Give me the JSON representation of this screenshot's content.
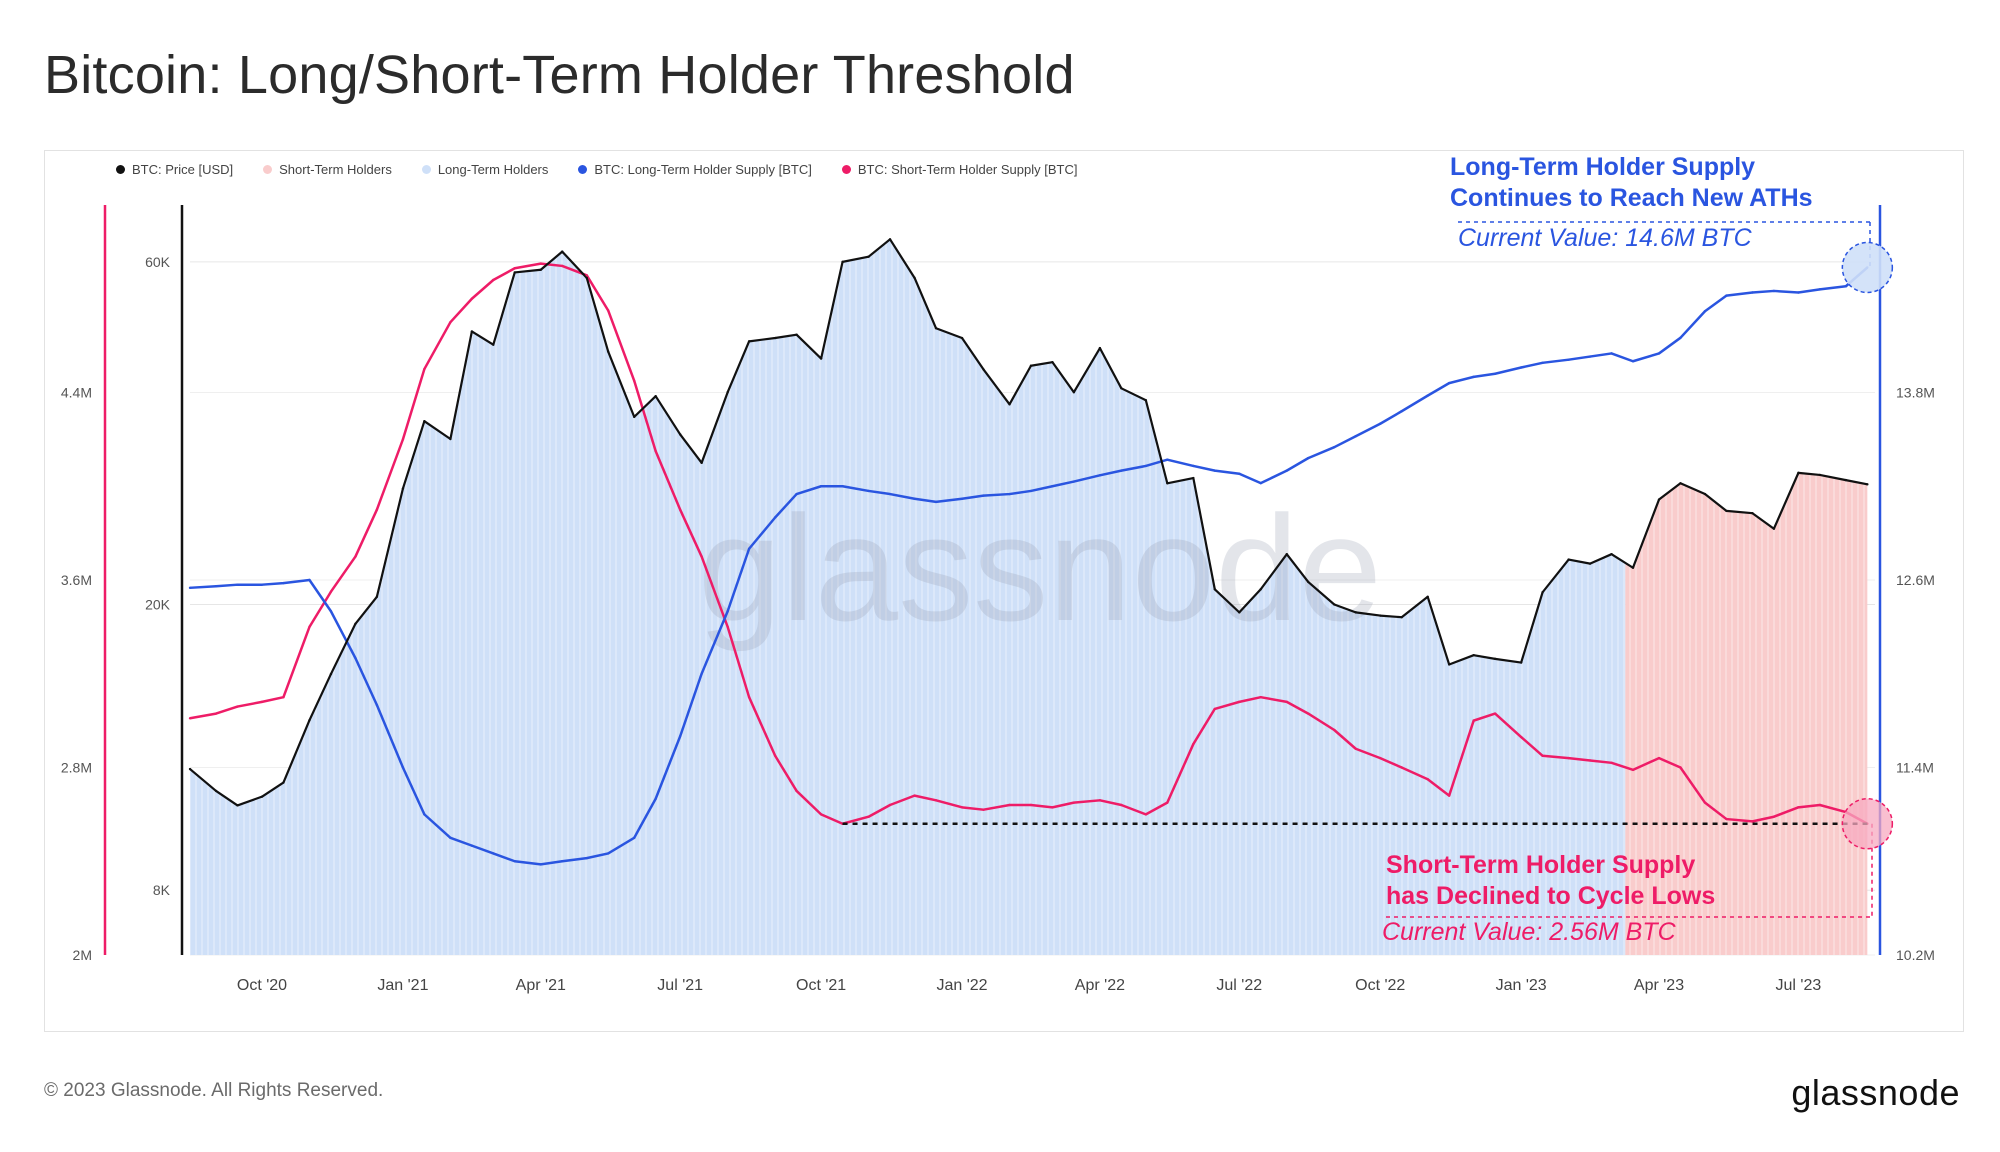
{
  "title": "Bitcoin: Long/Short-Term Holder Threshold",
  "legend": [
    {
      "label": "BTC: Price [USD]",
      "color": "#111111"
    },
    {
      "label": "Short-Term Holders",
      "color": "#f9cccc"
    },
    {
      "label": "Long-Term Holders",
      "color": "#cfe0f8"
    },
    {
      "label": "BTC: Long-Term Holder Supply [BTC]",
      "color": "#2a55e0"
    },
    {
      "label": "BTC: Short-Term Holder Supply [BTC]",
      "color": "#ee1c67"
    }
  ],
  "annotations": {
    "lth_title_line1": "Long-Term Holder Supply",
    "lth_title_line2": "Continues to Reach New ATHs",
    "lth_value": "Current Value: 14.6M BTC",
    "sth_title_line1": "Short-Term Holder Supply",
    "sth_title_line2": "has Declined to Cycle Lows",
    "sth_value": "Current Value: 2.56M BTC"
  },
  "watermark": "glassnode",
  "footer": {
    "copyright": "© 2023 Glassnode. All Rights Reserved.",
    "brand": "glassnode"
  },
  "chart_data": {
    "type": "line",
    "x_ticks": [
      "Oct '20",
      "Jan '21",
      "Apr '21",
      "Jul '21",
      "Oct '21",
      "Jan '22",
      "Apr '22",
      "Jul '22",
      "Oct '22",
      "Jan '23",
      "Apr '23",
      "Jul '23"
    ],
    "x": [
      "2020-08-15",
      "2020-09-01",
      "2020-09-15",
      "2020-10-01",
      "2020-10-15",
      "2020-11-01",
      "2020-11-15",
      "2020-12-01",
      "2020-12-15",
      "2021-01-01",
      "2021-01-15",
      "2021-02-01",
      "2021-02-15",
      "2021-03-01",
      "2021-03-15",
      "2021-04-01",
      "2021-04-15",
      "2021-05-01",
      "2021-05-15",
      "2021-06-01",
      "2021-06-15",
      "2021-07-01",
      "2021-07-15",
      "2021-08-01",
      "2021-08-15",
      "2021-09-01",
      "2021-09-15",
      "2021-10-01",
      "2021-10-15",
      "2021-11-01",
      "2021-11-15",
      "2021-12-01",
      "2021-12-15",
      "2022-01-01",
      "2022-01-15",
      "2022-02-01",
      "2022-02-15",
      "2022-03-01",
      "2022-03-15",
      "2022-04-01",
      "2022-04-15",
      "2022-05-01",
      "2022-05-15",
      "2022-06-01",
      "2022-06-15",
      "2022-07-01",
      "2022-07-15",
      "2022-08-01",
      "2022-08-15",
      "2022-09-01",
      "2022-09-15",
      "2022-10-01",
      "2022-10-15",
      "2022-11-01",
      "2022-11-15",
      "2022-12-01",
      "2022-12-15",
      "2023-01-01",
      "2023-01-15",
      "2023-02-01",
      "2023-02-15",
      "2023-03-01",
      "2023-03-15",
      "2023-04-01",
      "2023-04-15",
      "2023-05-01",
      "2023-05-15",
      "2023-06-01",
      "2023-06-15",
      "2023-07-01",
      "2023-07-15",
      "2023-08-01",
      "2023-08-15"
    ],
    "series": [
      {
        "name": "BTC: Price [USD]",
        "axis": "price",
        "color": "#111111",
        "values": [
          11800,
          11000,
          10500,
          10800,
          11300,
          13800,
          16000,
          18800,
          20500,
          29000,
          36000,
          34000,
          48000,
          46000,
          58000,
          58500,
          62000,
          57000,
          45000,
          36500,
          39000,
          34500,
          31500,
          39500,
          46500,
          47000,
          47500,
          44000,
          60000,
          61000,
          64500,
          57000,
          48500,
          47000,
          42500,
          38000,
          43000,
          43500,
          39500,
          45500,
          40000,
          38500,
          29500,
          30000,
          21000,
          19500,
          21000,
          23500,
          21500,
          20000,
          19500,
          19300,
          19200,
          20500,
          16500,
          17000,
          16800,
          16600,
          20800,
          23100,
          22800,
          23500,
          22500,
          28000,
          29500,
          28500,
          27000,
          26800,
          25500,
          30500,
          30300,
          29800,
          29400
        ]
      },
      {
        "name": "BTC: Long-Term Holder Supply [BTC]",
        "axis": "supply_right",
        "color": "#2a55e0",
        "values": [
          12.55,
          12.56,
          12.57,
          12.57,
          12.58,
          12.6,
          12.4,
          12.1,
          11.8,
          11.4,
          11.1,
          10.95,
          10.9,
          10.85,
          10.8,
          10.78,
          10.8,
          10.82,
          10.85,
          10.95,
          11.2,
          11.6,
          12.0,
          12.4,
          12.8,
          13.0,
          13.15,
          13.2,
          13.2,
          13.17,
          13.15,
          13.12,
          13.1,
          13.12,
          13.14,
          13.15,
          13.17,
          13.2,
          13.23,
          13.27,
          13.3,
          13.33,
          13.37,
          13.33,
          13.3,
          13.28,
          13.22,
          13.3,
          13.38,
          13.45,
          13.52,
          13.6,
          13.68,
          13.78,
          13.86,
          13.9,
          13.92,
          13.96,
          13.99,
          14.01,
          14.03,
          14.05,
          14.0,
          14.05,
          14.15,
          14.32,
          14.42,
          14.44,
          14.45,
          14.44,
          14.46,
          14.48,
          14.6
        ]
      },
      {
        "name": "BTC: Short-Term Holder Supply [BTC]",
        "axis": "supply_left",
        "color": "#ee1c67",
        "values": [
          3.01,
          3.03,
          3.06,
          3.08,
          3.1,
          3.4,
          3.55,
          3.7,
          3.9,
          4.2,
          4.5,
          4.7,
          4.8,
          4.88,
          4.93,
          4.95,
          4.94,
          4.9,
          4.75,
          4.45,
          4.15,
          3.9,
          3.7,
          3.4,
          3.1,
          2.85,
          2.7,
          2.6,
          2.56,
          2.59,
          2.64,
          2.68,
          2.66,
          2.63,
          2.62,
          2.64,
          2.64,
          2.63,
          2.65,
          2.66,
          2.64,
          2.6,
          2.65,
          2.9,
          3.05,
          3.08,
          3.1,
          3.08,
          3.03,
          2.96,
          2.88,
          2.84,
          2.8,
          2.75,
          2.68,
          3.0,
          3.03,
          2.93,
          2.85,
          2.84,
          2.83,
          2.82,
          2.79,
          2.84,
          2.8,
          2.65,
          2.58,
          2.57,
          2.59,
          2.63,
          2.64,
          2.61,
          2.56
        ]
      }
    ],
    "lth_period_end": "2023-03-10",
    "sth_period_start": "2023-03-10",
    "axes": {
      "price": {
        "ticks": [
          "8K",
          "20K",
          "60K"
        ],
        "tick_values": [
          8000,
          20000,
          60000
        ],
        "scale": "log"
      },
      "supply_left": {
        "ticks": [
          "2M",
          "2.8M",
          "3.6M",
          "4.4M"
        ],
        "tick_values": [
          2.0,
          2.8,
          3.6,
          4.4
        ],
        "ylim": [
          2.0,
          5.2
        ]
      },
      "supply_right": {
        "ticks": [
          "10.2M",
          "11.4M",
          "12.6M",
          "13.8M"
        ],
        "tick_values": [
          10.2,
          11.4,
          12.6,
          13.8
        ],
        "ylim": [
          10.2,
          15.0
        ]
      }
    },
    "grid": true
  }
}
